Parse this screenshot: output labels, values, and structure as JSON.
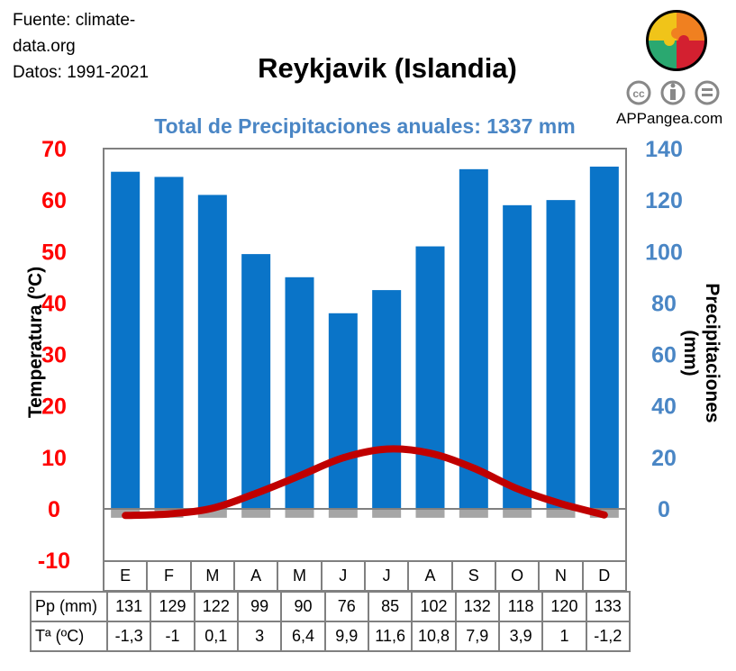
{
  "source": {
    "line1": "Fuente: climate-",
    "line2": "data.org",
    "line3": "Datos: 1991-2021"
  },
  "brand": {
    "site": "APPangea.com",
    "license_icons": [
      "cc-icon",
      "attribution-icon",
      "no-derivatives-icon"
    ],
    "colors": [
      "#f0c419",
      "#f08020",
      "#2aa870",
      "#d32030"
    ]
  },
  "chart_data": {
    "type": "bar+line",
    "title": "Reykjavik (Islandia)",
    "subtitle": "Total de Precipitaciones anuales: 1337 mm",
    "categories": [
      "E",
      "F",
      "M",
      "A",
      "M",
      "J",
      "J",
      "A",
      "S",
      "O",
      "N",
      "D"
    ],
    "series": [
      {
        "name": "Pp (mm)",
        "type": "bar",
        "axis": "right",
        "color": "#0a74c8",
        "values": [
          131,
          129,
          122,
          99,
          90,
          76,
          85,
          102,
          132,
          118,
          120,
          133
        ]
      },
      {
        "name": "Tª (ºC)",
        "type": "line",
        "axis": "left",
        "color": "#c00000",
        "values": [
          -1.3,
          -1,
          0.1,
          3,
          6.4,
          9.9,
          11.6,
          10.8,
          7.9,
          3.9,
          1,
          -1.2
        ]
      }
    ],
    "table_labels": {
      "pp": "Pp (mm)",
      "temp": "Tª (ºC)"
    },
    "temp_display": [
      "-1,3",
      "-1",
      "0,1",
      "3",
      "6,4",
      "9,9",
      "11,6",
      "10,8",
      "7,9",
      "3,9",
      "1",
      "-1,2"
    ],
    "ylabel_left": "Temperatura (ºC)",
    "ylabel_right": "Precipitaciones (mm)",
    "ylim_left": [
      -10,
      70
    ],
    "ylim_right": [
      0,
      140
    ],
    "yticks_left": [
      "70",
      "60",
      "50",
      "40",
      "30",
      "20",
      "10",
      "0",
      "-10"
    ],
    "yticks_right": [
      "140",
      "120",
      "100",
      "80",
      "60",
      "40",
      "20",
      "0"
    ],
    "left_color": "#ff0000",
    "right_color": "#4a86c5"
  }
}
